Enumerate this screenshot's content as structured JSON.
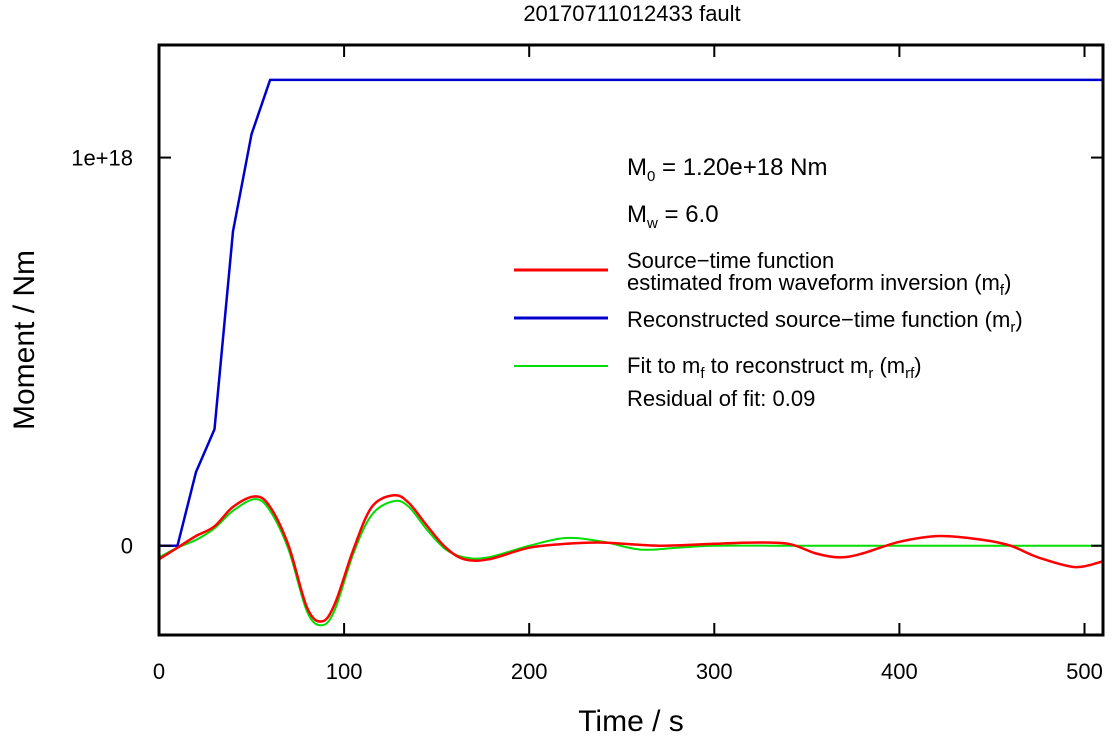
{
  "chart_data": {
    "type": "line",
    "title": "20170711012433 fault",
    "xlabel": "Time / s",
    "ylabel": "Moment / Nm",
    "xlim": [
      0,
      510
    ],
    "ylim": [
      -2.3e+17,
      1.29e+18
    ],
    "x_ticks": [
      0,
      100,
      200,
      300,
      400,
      500
    ],
    "x_tick_labels": [
      "0",
      "100",
      "200",
      "300",
      "400",
      "500"
    ],
    "y_ticks": [
      0,
      1e+18
    ],
    "y_tick_labels": [
      "0",
      "1e+18"
    ],
    "grid": false,
    "legend_position": "right",
    "annotations": {
      "m0_symbol": "M",
      "m0_sub": "0",
      "m0_value": " = 1.20e+18 Nm",
      "mw_symbol": "M",
      "mw_sub": "w",
      "mw_value": " = 6.0",
      "residual": "Residual of fit: 0.09"
    },
    "legend": [
      {
        "key": "mf",
        "color": "#ff0000",
        "line1": "Source−time function",
        "line2_pre": "estimated from waveform inversion (m",
        "line2_sub": "f",
        "line2_post": ")"
      },
      {
        "key": "mr",
        "color": "#0000cc",
        "line1_pre": "Reconstructed source−time function (m",
        "line1_sub": "r",
        "line1_post": ")"
      },
      {
        "key": "mrf",
        "color": "#00dd00",
        "p1": "Fit to m",
        "s1": "f",
        "p2": " to reconstruct m",
        "s2": "r",
        "p3": " (m",
        "s3": "rf",
        "p4": ")"
      }
    ],
    "series": [
      {
        "key": "mr",
        "color": "#0000cc",
        "x": [
          0,
          10,
          20,
          30,
          40,
          50,
          60,
          510
        ],
        "y": [
          0,
          0,
          1.9e+17,
          3e+17,
          8.1e+17,
          1.06e+18,
          1.2e+18,
          1.2e+18
        ]
      },
      {
        "key": "mf",
        "color": "#ff0000",
        "x": [
          0,
          10,
          20,
          30,
          40,
          52,
          60,
          70,
          80,
          88,
          95,
          105,
          115,
          127,
          135,
          145,
          155,
          165,
          178,
          200,
          220,
          240,
          270,
          300,
          320,
          340,
          355,
          368,
          380,
          400,
          422,
          445,
          460,
          475,
          495,
          510
        ],
        "y": [
          -3.5e+16,
          -5000000000000000.0,
          2.5e+16,
          5e+16,
          1e+17,
          1.27e+17,
          1e+17,
          0,
          -1.6e+17,
          -1.95e+17,
          -1.5e+17,
          -1e+16,
          1e+17,
          1.3e+17,
          1.1e+17,
          5e+16,
          -5000000000000000.0,
          -3.5e+16,
          -3.5e+16,
          -5000000000000000.0,
          5000000000000000.0,
          8000000000000000.0,
          0,
          5000000000000000.0,
          8000000000000000.0,
          5000000000000000.0,
          -2e+16,
          -3e+16,
          -2e+16,
          1e+16,
          2.5e+16,
          1.5e+16,
          0,
          -3e+16,
          -5.5e+16,
          -4e+16
        ]
      },
      {
        "key": "mrf",
        "color": "#00dd00",
        "x": [
          0,
          10,
          20,
          30,
          40,
          52,
          60,
          70,
          80,
          88,
          95,
          105,
          115,
          127,
          135,
          145,
          155,
          165,
          178,
          200,
          220,
          240,
          260,
          280,
          300,
          330,
          360,
          400,
          450,
          510
        ],
        "y": [
          -3e+16,
          -5000000000000000.0,
          1.5e+16,
          4.5e+16,
          9e+16,
          1.2e+17,
          9e+16,
          -1e+16,
          -1.7e+17,
          -2.05e+17,
          -1.65e+17,
          -2e+16,
          8e+16,
          1.15e+17,
          1e+17,
          4e+16,
          -1e+16,
          -3e+16,
          -3e+16,
          0,
          2e+16,
          1e+16,
          -1e+16,
          -5000000000000000.0,
          0,
          0,
          0,
          0,
          0,
          0
        ]
      }
    ]
  }
}
